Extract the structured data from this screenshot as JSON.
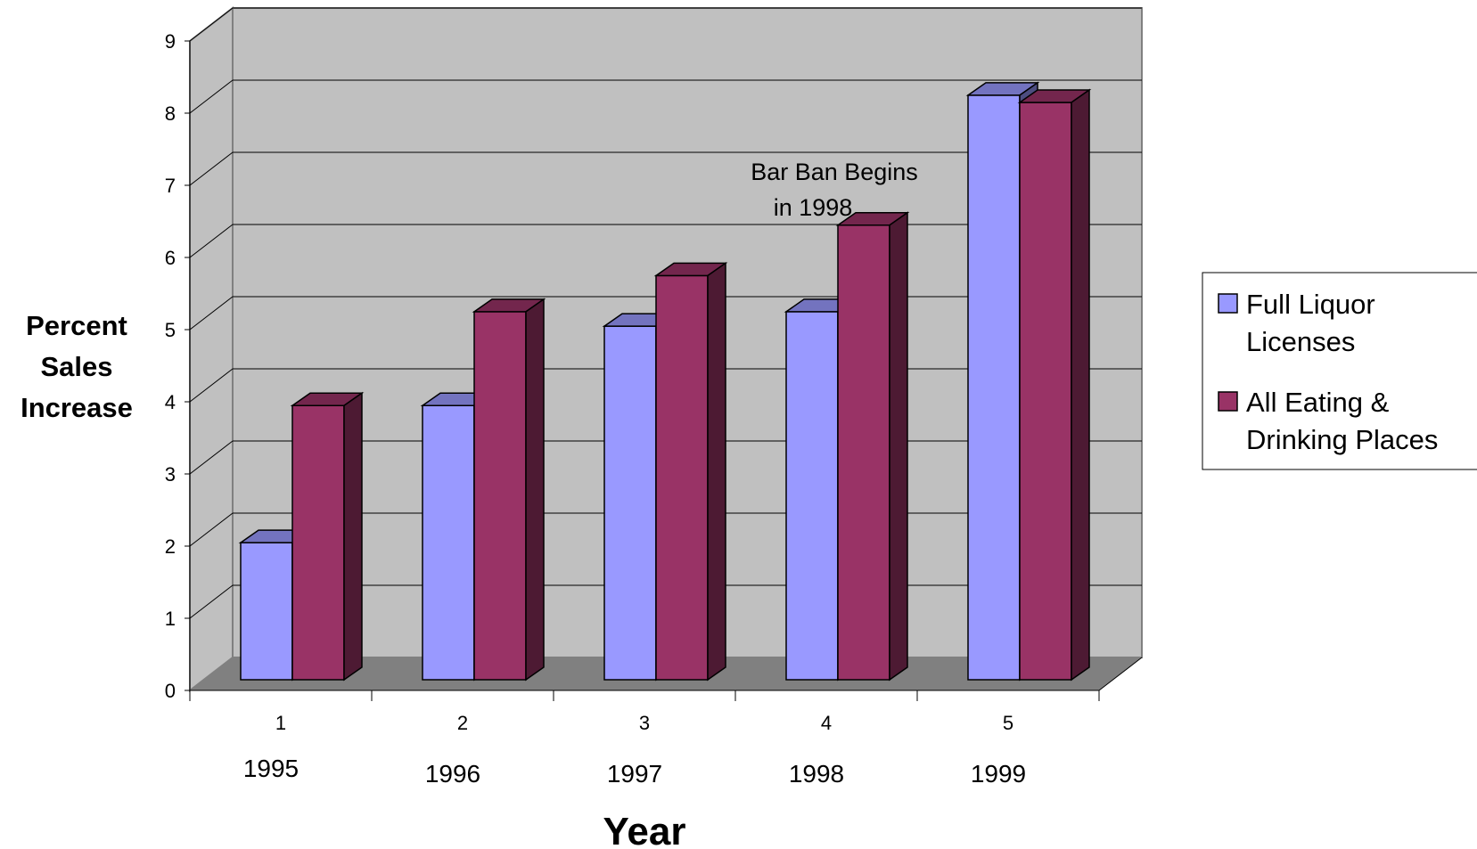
{
  "chart_data": {
    "type": "bar",
    "categories": [
      "1",
      "2",
      "3",
      "4",
      "5"
    ],
    "year_labels": [
      "1995",
      "1996",
      "1997",
      "1998",
      "1999"
    ],
    "series": [
      {
        "name": "Full Liquor Licenses",
        "values": [
          1.9,
          3.8,
          4.9,
          5.1,
          8.1
        ],
        "color": "#9999ff"
      },
      {
        "name": "All Eating & Drinking Places",
        "values": [
          3.8,
          5.1,
          5.6,
          6.3,
          8.0
        ],
        "color": "#993366"
      }
    ],
    "ylabel_lines": [
      "Percent",
      "Sales",
      "Increase"
    ],
    "xlabel": "Year",
    "ylim": [
      0,
      9
    ],
    "yticks": [
      "0",
      "1",
      "2",
      "3",
      "4",
      "5",
      "6",
      "7",
      "8",
      "9"
    ],
    "annotation_lines": [
      "Bar Ban Begins",
      "in 1998"
    ],
    "grid": true,
    "legend_position": "right",
    "style": "3d",
    "wall_color": "#c0c0c0",
    "floor_color": "#808080"
  }
}
